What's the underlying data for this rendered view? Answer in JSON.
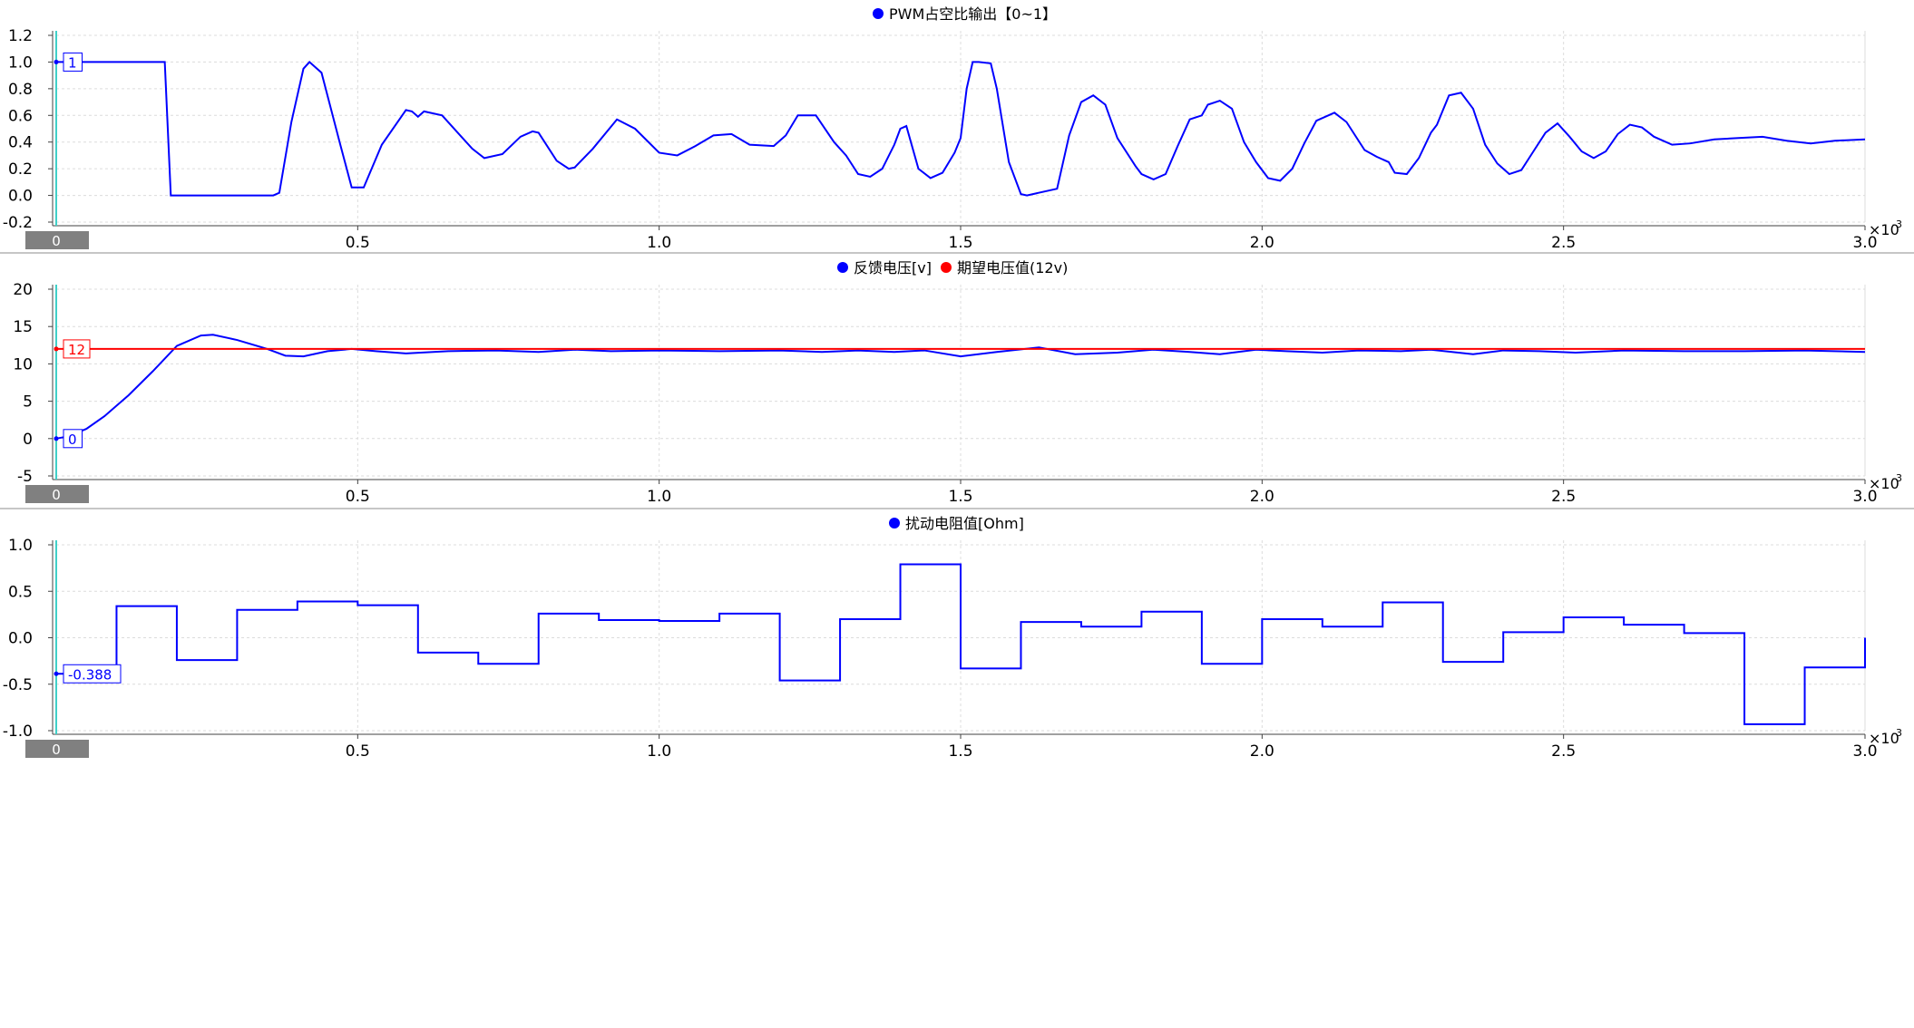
{
  "chart_data": [
    {
      "type": "line",
      "title": "",
      "legend_position": "top-center",
      "grid": true,
      "x_multiplier_label": "×10",
      "x_multiplier_exponent": "-3",
      "xlim": [
        0,
        3.0
      ],
      "ylim": [
        -0.2,
        1.2
      ],
      "xticks": [
        "0.5",
        "1.0",
        "1.5",
        "2.0",
        "2.5",
        "3.0"
      ],
      "yticks": [
        "-0.2",
        "0.0",
        "0.2",
        "0.4",
        "0.6",
        "0.8",
        "1.0",
        "1.2"
      ],
      "cursor": {
        "x": 0,
        "x_label": "0"
      },
      "series": [
        {
          "name": "PWM占空比输出【0~1】",
          "color": "#0000ff",
          "marker_value": "1",
          "x": [
            0,
            0.01,
            0.18,
            0.19,
            0.36,
            0.37,
            0.39,
            0.41,
            0.42,
            0.44,
            0.47,
            0.49,
            0.51,
            0.54,
            0.58,
            0.59,
            0.6,
            0.61,
            0.64,
            0.69,
            0.71,
            0.74,
            0.77,
            0.79,
            0.8,
            0.81,
            0.83,
            0.85,
            0.86,
            0.89,
            0.93,
            0.96,
            1.0,
            1.03,
            1.06,
            1.09,
            1.12,
            1.15,
            1.19,
            1.21,
            1.23,
            1.26,
            1.29,
            1.31,
            1.33,
            1.35,
            1.37,
            1.39,
            1.4,
            1.41,
            1.43,
            1.45,
            1.47,
            1.49,
            1.5,
            1.51,
            1.52,
            1.53,
            1.55,
            1.56,
            1.58,
            1.6,
            1.61,
            1.66,
            1.68,
            1.7,
            1.72,
            1.74,
            1.76,
            1.79,
            1.8,
            1.82,
            1.84,
            1.86,
            1.88,
            1.9,
            1.91,
            1.93,
            1.95,
            1.97,
            1.99,
            2.01,
            2.03,
            2.05,
            2.07,
            2.09,
            2.12,
            2.14,
            2.17,
            2.19,
            2.21,
            2.22,
            2.24,
            2.26,
            2.28,
            2.29,
            2.31,
            2.33,
            2.35,
            2.37,
            2.39,
            2.41,
            2.43,
            2.45,
            2.47,
            2.49,
            2.51,
            2.53,
            2.55,
            2.57,
            2.59,
            2.61,
            2.63,
            2.65,
            2.68,
            2.71,
            2.75,
            2.79,
            2.83,
            2.87,
            2.91,
            2.95,
            3.0
          ],
          "y": [
            1.0,
            1.0,
            1.0,
            0.0,
            0.0,
            0.02,
            0.55,
            0.95,
            1.0,
            0.92,
            0.4,
            0.06,
            0.06,
            0.38,
            0.64,
            0.63,
            0.59,
            0.63,
            0.6,
            0.35,
            0.28,
            0.31,
            0.44,
            0.48,
            0.47,
            0.4,
            0.26,
            0.2,
            0.21,
            0.35,
            0.57,
            0.5,
            0.32,
            0.3,
            0.37,
            0.45,
            0.46,
            0.38,
            0.37,
            0.45,
            0.6,
            0.6,
            0.4,
            0.3,
            0.16,
            0.14,
            0.2,
            0.38,
            0.5,
            0.52,
            0.2,
            0.13,
            0.17,
            0.32,
            0.43,
            0.8,
            1.0,
            1.0,
            0.99,
            0.8,
            0.25,
            0.01,
            0.0,
            0.05,
            0.45,
            0.7,
            0.75,
            0.68,
            0.43,
            0.22,
            0.16,
            0.12,
            0.16,
            0.37,
            0.57,
            0.6,
            0.68,
            0.71,
            0.65,
            0.4,
            0.25,
            0.13,
            0.11,
            0.2,
            0.39,
            0.56,
            0.62,
            0.55,
            0.34,
            0.29,
            0.25,
            0.17,
            0.16,
            0.28,
            0.47,
            0.53,
            0.75,
            0.77,
            0.65,
            0.38,
            0.24,
            0.16,
            0.19,
            0.33,
            0.47,
            0.54,
            0.44,
            0.33,
            0.28,
            0.33,
            0.46,
            0.53,
            0.51,
            0.44,
            0.38,
            0.39,
            0.42,
            0.43,
            0.44,
            0.41,
            0.39,
            0.41,
            0.42
          ]
        }
      ]
    },
    {
      "type": "line",
      "title": "",
      "legend_position": "top-center",
      "grid": true,
      "x_multiplier_label": "×10",
      "x_multiplier_exponent": "-3",
      "xlim": [
        0,
        3.0
      ],
      "ylim": [
        -5,
        20
      ],
      "xticks": [
        "0.5",
        "1.0",
        "1.5",
        "2.0",
        "2.5",
        "3.0"
      ],
      "yticks": [
        "-5",
        "0",
        "5",
        "10",
        "15",
        "20"
      ],
      "cursor": {
        "x": 0,
        "x_label": "0"
      },
      "series": [
        {
          "name": "反馈电压[v]",
          "color": "#0000ff",
          "marker_value": "0",
          "x": [
            0,
            0.02,
            0.05,
            0.08,
            0.12,
            0.16,
            0.2,
            0.24,
            0.26,
            0.3,
            0.35,
            0.38,
            0.41,
            0.45,
            0.49,
            0.53,
            0.58,
            0.65,
            0.73,
            0.8,
            0.86,
            0.92,
            1.0,
            1.1,
            1.2,
            1.27,
            1.33,
            1.39,
            1.44,
            1.5,
            1.56,
            1.63,
            1.69,
            1.76,
            1.82,
            1.88,
            1.93,
            1.99,
            2.04,
            2.1,
            2.16,
            2.23,
            2.28,
            2.35,
            2.4,
            2.46,
            2.52,
            2.6,
            2.7,
            2.8,
            2.9,
            3.0
          ],
          "y": [
            0,
            0.3,
            1.3,
            3.0,
            5.8,
            9.0,
            12.4,
            13.8,
            13.9,
            13.2,
            12.0,
            11.1,
            11.0,
            11.7,
            12.0,
            11.7,
            11.4,
            11.7,
            11.8,
            11.6,
            11.9,
            11.7,
            11.8,
            11.7,
            11.8,
            11.6,
            11.8,
            11.6,
            11.8,
            11.0,
            11.6,
            12.2,
            11.3,
            11.5,
            11.9,
            11.6,
            11.3,
            11.9,
            11.7,
            11.5,
            11.8,
            11.7,
            11.9,
            11.3,
            11.8,
            11.7,
            11.5,
            11.8,
            11.7,
            11.7,
            11.8,
            11.6
          ]
        },
        {
          "name": "期望电压值(12v)",
          "color": "#ff0000",
          "marker_value": "12",
          "x": [
            0,
            3.0
          ],
          "y": [
            12,
            12
          ]
        }
      ]
    },
    {
      "type": "line",
      "title": "",
      "legend_position": "top-center",
      "grid": true,
      "x_multiplier_label": "×10",
      "x_multiplier_exponent": "-3",
      "xlim": [
        0,
        3.0
      ],
      "ylim": [
        -1.0,
        1.0
      ],
      "xticks": [
        "0.5",
        "1.0",
        "1.5",
        "2.0",
        "2.5",
        "3.0"
      ],
      "yticks": [
        "-1.0",
        "-0.5",
        "0.0",
        "0.5",
        "1.0"
      ],
      "cursor": {
        "x": 0,
        "x_label": "0"
      },
      "series": [
        {
          "name": "扰动电阻值[Ohm]",
          "color": "#0000ff",
          "marker_value": "-0.388",
          "step": true,
          "x": [
            0,
            0.1,
            0.2,
            0.3,
            0.4,
            0.5,
            0.6,
            0.7,
            0.8,
            0.9,
            1.0,
            1.1,
            1.2,
            1.3,
            1.4,
            1.5,
            1.6,
            1.7,
            1.8,
            1.9,
            2.0,
            2.1,
            2.2,
            2.3,
            2.4,
            2.5,
            2.6,
            2.7,
            2.8,
            2.9,
            3.0
          ],
          "y": [
            -0.388,
            0.34,
            -0.24,
            0.3,
            0.39,
            0.35,
            -0.16,
            -0.28,
            0.26,
            0.19,
            0.18,
            0.26,
            -0.46,
            0.2,
            0.79,
            -0.33,
            0.17,
            0.12,
            0.28,
            -0.28,
            0.2,
            0.12,
            0.38,
            -0.26,
            0.06,
            0.22,
            0.14,
            0.05,
            -0.93,
            -0.32,
            0.0
          ]
        }
      ]
    }
  ]
}
